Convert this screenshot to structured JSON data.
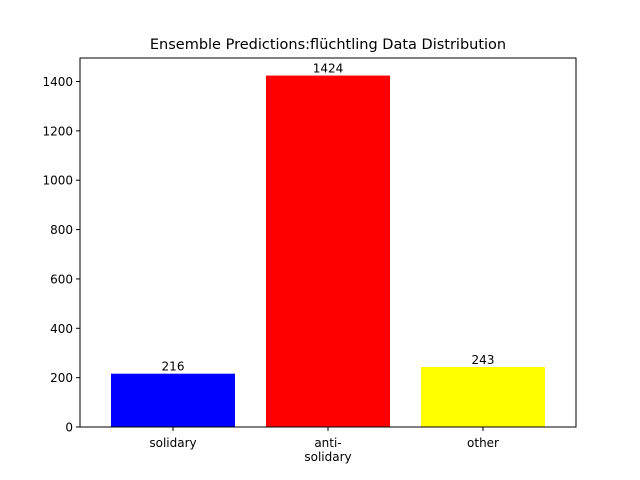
{
  "chart_data": {
    "type": "bar",
    "title": "Ensemble Predictions:flüchtling Data Distribution",
    "xlabel": "",
    "ylabel": "",
    "categories": [
      "solidary",
      "anti-solidary",
      "other"
    ],
    "category_lines": [
      [
        "solidary"
      ],
      [
        "anti-",
        "solidary"
      ],
      [
        "other"
      ]
    ],
    "values": [
      216,
      1424,
      243
    ],
    "bar_colors": [
      "#0000ff",
      "#ff0000",
      "#ffff00"
    ],
    "ylim": [
      0,
      1495.2
    ],
    "yticks": [
      0,
      200,
      400,
      600,
      800,
      1000,
      1200,
      1400
    ],
    "grid": false,
    "legend": "none"
  }
}
